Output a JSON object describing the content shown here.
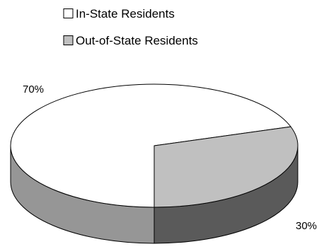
{
  "chart_data": {
    "type": "pie",
    "style": "3d",
    "title": "",
    "legend_position": "top",
    "categories": [
      "In-State Residents",
      "Out-of-State Residents"
    ],
    "values": [
      70,
      30
    ],
    "value_labels": [
      "70%",
      "30%"
    ],
    "colors": [
      "#ffffff",
      "#c0c0c0"
    ],
    "side_colors": [
      "#969696",
      "#5a5a5a"
    ]
  }
}
